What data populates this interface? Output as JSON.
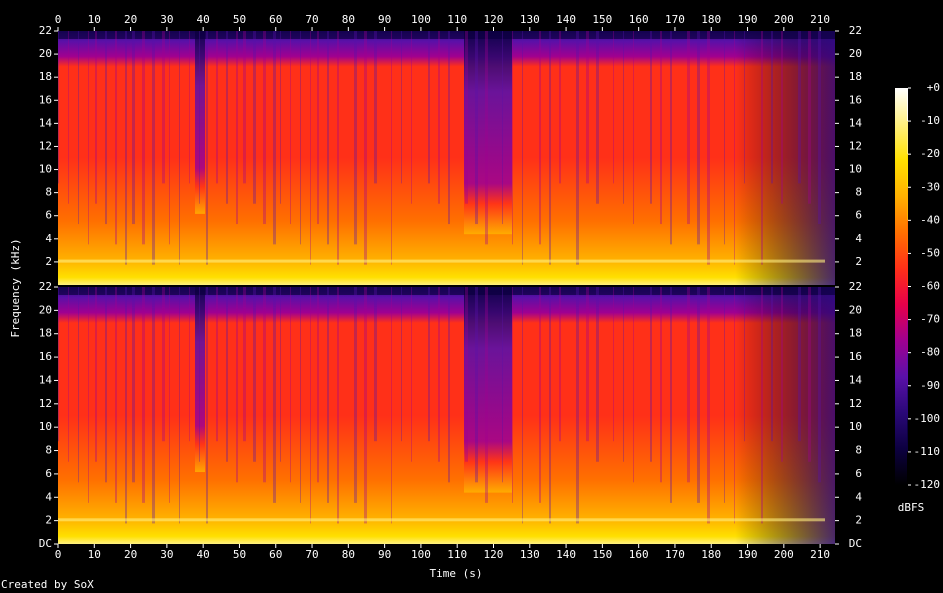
{
  "chart_data": {
    "type": "spectrogram",
    "xlabel": "Time (s)",
    "ylabel": "Frequency (kHz)",
    "footer": "Created by SoX",
    "xlim": [
      0,
      214.1
    ],
    "xticks": [
      0,
      10,
      20,
      30,
      40,
      50,
      60,
      70,
      80,
      90,
      100,
      110,
      120,
      130,
      140,
      150,
      160,
      170,
      180,
      190,
      200,
      210
    ],
    "panels": [
      {
        "ylim": [
          0,
          22
        ],
        "yticks": [
          2,
          4,
          6,
          8,
          10,
          12,
          14,
          16,
          18,
          20,
          22
        ]
      },
      {
        "ylim": [
          0,
          22
        ],
        "yticks": [
          {
            "value": 0,
            "label": "DC"
          },
          2,
          4,
          6,
          8,
          10,
          12,
          14,
          16,
          18,
          20,
          22
        ]
      }
    ],
    "colorbar": {
      "label": "dBFS",
      "lim": [
        -120,
        0
      ],
      "ticks": [
        {
          "value": 0,
          "label": "+0"
        },
        -10,
        -20,
        -30,
        -40,
        -50,
        -60,
        -70,
        -80,
        -90,
        -100,
        -110,
        -120
      ],
      "colors": [
        "#ffffff",
        "#fff080",
        "#ffe000",
        "#ffb000",
        "#ff7000",
        "#ff3018",
        "#e8004a",
        "#a00090",
        "#5a10a8",
        "#2a0878",
        "#0c0040",
        "#000000"
      ]
    }
  }
}
